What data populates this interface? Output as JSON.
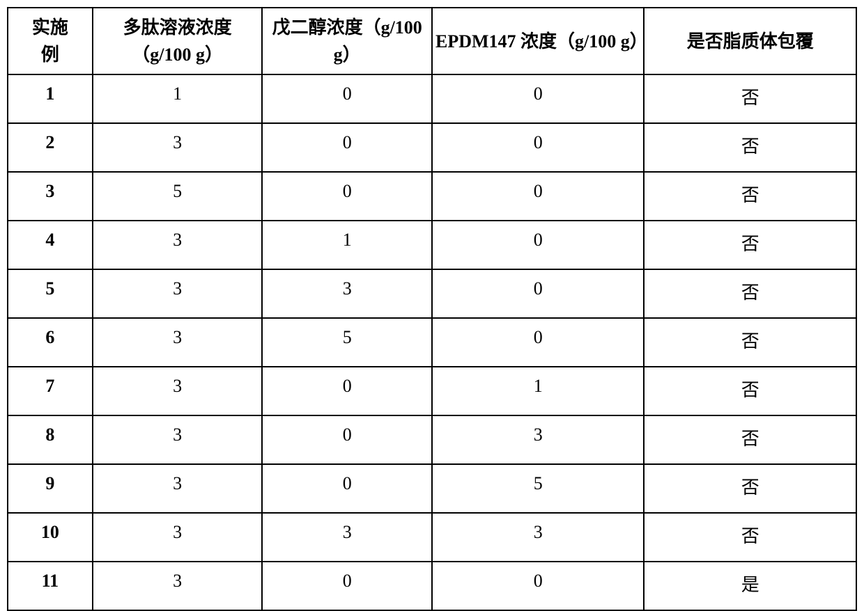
{
  "table": {
    "columns": [
      "实施\n例",
      "多肽溶液浓度（g/100 g）",
      "戊二醇浓度（g/100 g）",
      "EPDM147 浓度（g/100 g）",
      "是否脂质体包覆"
    ],
    "column_widths": [
      "10%",
      "20%",
      "20%",
      "25%",
      "25%"
    ],
    "rows": [
      [
        "1",
        "1",
        "0",
        "0",
        "否"
      ],
      [
        "2",
        "3",
        "0",
        "0",
        "否"
      ],
      [
        "3",
        "5",
        "0",
        "0",
        "否"
      ],
      [
        "4",
        "3",
        "1",
        "0",
        "否"
      ],
      [
        "5",
        "3",
        "3",
        "0",
        "否"
      ],
      [
        "6",
        "3",
        "5",
        "0",
        "否"
      ],
      [
        "7",
        "3",
        "0",
        "1",
        "否"
      ],
      [
        "8",
        "3",
        "0",
        "3",
        "否"
      ],
      [
        "9",
        "3",
        "0",
        "5",
        "否"
      ],
      [
        "10",
        "3",
        "3",
        "3",
        "否"
      ],
      [
        "11",
        "3",
        "0",
        "0",
        "是"
      ]
    ],
    "styling": {
      "border_color": "#000000",
      "border_width": 2,
      "background_color": "#ffffff",
      "text_color": "#000000",
      "header_font_weight": "bold",
      "header_font_size": 26,
      "cell_font_size": 26,
      "first_column_bold": true,
      "font_family": "SimSun"
    }
  }
}
